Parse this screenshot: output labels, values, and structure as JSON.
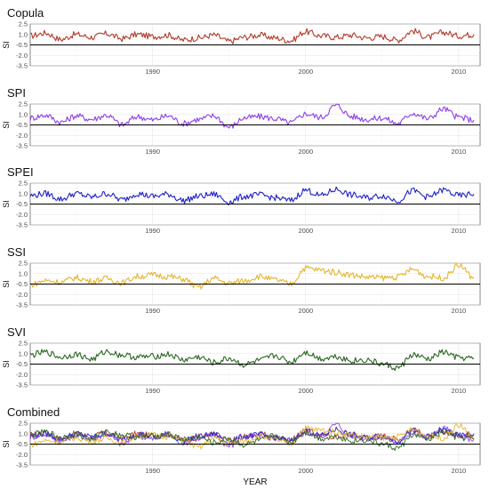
{
  "chart_data": {
    "type": "line",
    "x_label": "YEAR",
    "y_label": "SI",
    "x_range": [
      1982,
      2011.4
    ],
    "y_range": [
      -3.5,
      2.5
    ],
    "y_ticks": [
      "2.5",
      "1.0",
      "-0.5",
      "-2.0",
      "-3.5"
    ],
    "y_tick_values": [
      2.5,
      1.0,
      -0.5,
      -2.0,
      -3.5
    ],
    "x_ticks": [
      "1990",
      "2000",
      "2010"
    ],
    "x_tick_values": [
      1990,
      2000,
      2010
    ],
    "reference_line_y": -0.5,
    "grid": true,
    "panels": [
      {
        "title": "Copula",
        "color": "#b33a2a",
        "points": [
          [
            1982,
            0.8
          ],
          [
            1983,
            1.2
          ],
          [
            1984,
            0.3
          ],
          [
            1985,
            1.0
          ],
          [
            1986,
            0.6
          ],
          [
            1987,
            1.1
          ],
          [
            1988,
            0.4
          ],
          [
            1989,
            1.0
          ],
          [
            1990,
            0.7
          ],
          [
            1991,
            0.9
          ],
          [
            1992,
            0.2
          ],
          [
            1993,
            0.5
          ],
          [
            1994,
            0.9
          ],
          [
            1995,
            0.0
          ],
          [
            1996,
            0.6
          ],
          [
            1997,
            0.9
          ],
          [
            1998,
            0.5
          ],
          [
            1999,
            0.1
          ],
          [
            2000,
            1.4
          ],
          [
            2001,
            0.8
          ],
          [
            2002,
            0.6
          ],
          [
            2003,
            0.9
          ],
          [
            2004,
            0.5
          ],
          [
            2005,
            0.7
          ],
          [
            2006,
            0.2
          ],
          [
            2007,
            1.5
          ],
          [
            2008,
            0.6
          ],
          [
            2009,
            1.3
          ],
          [
            2010,
            0.8
          ],
          [
            2011,
            1.0
          ]
        ]
      },
      {
        "title": "SPI",
        "color": "#8f3fe8",
        "points": [
          [
            1982,
            0.5
          ],
          [
            1983,
            0.9
          ],
          [
            1984,
            -0.1
          ],
          [
            1985,
            0.8
          ],
          [
            1986,
            0.3
          ],
          [
            1987,
            0.9
          ],
          [
            1988,
            -0.5
          ],
          [
            1989,
            0.7
          ],
          [
            1990,
            0.2
          ],
          [
            1991,
            0.8
          ],
          [
            1992,
            -0.3
          ],
          [
            1993,
            0.3
          ],
          [
            1994,
            0.8
          ],
          [
            1995,
            -0.8
          ],
          [
            1996,
            0.5
          ],
          [
            1997,
            0.7
          ],
          [
            1998,
            0.4
          ],
          [
            1999,
            -0.2
          ],
          [
            2000,
            1.1
          ],
          [
            2001,
            0.6
          ],
          [
            2002,
            2.3
          ],
          [
            2003,
            0.7
          ],
          [
            2004,
            0.3
          ],
          [
            2005,
            0.5
          ],
          [
            2006,
            -0.3
          ],
          [
            2007,
            1.2
          ],
          [
            2008,
            0.4
          ],
          [
            2009,
            1.8
          ],
          [
            2010,
            0.6
          ],
          [
            2011,
            0.2
          ]
        ]
      },
      {
        "title": "SPEI",
        "color": "#2020c8",
        "points": [
          [
            1982,
            0.7
          ],
          [
            1983,
            1.0
          ],
          [
            1984,
            0.2
          ],
          [
            1985,
            1.0
          ],
          [
            1986,
            0.5
          ],
          [
            1987,
            1.0
          ],
          [
            1988,
            0.1
          ],
          [
            1989,
            1.0
          ],
          [
            1990,
            0.6
          ],
          [
            1991,
            0.9
          ],
          [
            1992,
            0.0
          ],
          [
            1993,
            0.6
          ],
          [
            1994,
            0.9
          ],
          [
            1995,
            -0.2
          ],
          [
            1996,
            0.6
          ],
          [
            1997,
            0.8
          ],
          [
            1998,
            0.4
          ],
          [
            1999,
            0.0
          ],
          [
            2000,
            1.5
          ],
          [
            2001,
            0.7
          ],
          [
            2002,
            1.6
          ],
          [
            2003,
            0.8
          ],
          [
            2004,
            0.4
          ],
          [
            2005,
            0.7
          ],
          [
            2006,
            0.0
          ],
          [
            2007,
            1.4
          ],
          [
            2008,
            0.5
          ],
          [
            2009,
            1.5
          ],
          [
            2010,
            0.7
          ],
          [
            2011,
            0.9
          ]
        ]
      },
      {
        "title": "SSI",
        "color": "#e6b52e",
        "points": [
          [
            1982,
            -0.6
          ],
          [
            1983,
            0.0
          ],
          [
            1984,
            -0.2
          ],
          [
            1985,
            0.4
          ],
          [
            1986,
            -0.1
          ],
          [
            1987,
            0.3
          ],
          [
            1988,
            -0.3
          ],
          [
            1989,
            0.6
          ],
          [
            1990,
            0.8
          ],
          [
            1991,
            0.6
          ],
          [
            1992,
            0.2
          ],
          [
            1993,
            -1.0
          ],
          [
            1994,
            0.3
          ],
          [
            1995,
            -0.4
          ],
          [
            1996,
            0.0
          ],
          [
            1997,
            0.6
          ],
          [
            1998,
            0.1
          ],
          [
            1999,
            -0.5
          ],
          [
            2000,
            1.8
          ],
          [
            2001,
            1.5
          ],
          [
            2002,
            1.2
          ],
          [
            2003,
            0.8
          ],
          [
            2004,
            0.5
          ],
          [
            2005,
            0.4
          ],
          [
            2006,
            0.5
          ],
          [
            2007,
            1.6
          ],
          [
            2008,
            0.6
          ],
          [
            2009,
            0.4
          ],
          [
            2010,
            2.2
          ],
          [
            2011,
            0.4
          ]
        ]
      },
      {
        "title": "SVI",
        "color": "#2b6622",
        "points": [
          [
            1982,
            0.8
          ],
          [
            1983,
            1.2
          ],
          [
            1984,
            0.5
          ],
          [
            1985,
            0.9
          ],
          [
            1986,
            0.2
          ],
          [
            1987,
            1.3
          ],
          [
            1988,
            0.8
          ],
          [
            1989,
            0.5
          ],
          [
            1990,
            0.6
          ],
          [
            1991,
            0.9
          ],
          [
            1992,
            0.1
          ],
          [
            1993,
            0.5
          ],
          [
            1994,
            -0.3
          ],
          [
            1995,
            0.3
          ],
          [
            1996,
            -0.6
          ],
          [
            1997,
            0.0
          ],
          [
            1998,
            0.7
          ],
          [
            1999,
            -0.2
          ],
          [
            2000,
            1.2
          ],
          [
            2001,
            0.3
          ],
          [
            2002,
            0.6
          ],
          [
            2003,
            0.0
          ],
          [
            2004,
            0.1
          ],
          [
            2005,
            -0.5
          ],
          [
            2006,
            -1.1
          ],
          [
            2007,
            0.8
          ],
          [
            2008,
            0.2
          ],
          [
            2009,
            1.2
          ],
          [
            2010,
            0.4
          ],
          [
            2011,
            0.3
          ]
        ]
      }
    ],
    "combined": {
      "title": "Combined",
      "series_colors": [
        "#b33a2a",
        "#8f3fe8",
        "#2020c8",
        "#e6b52e",
        "#2b6622"
      ]
    }
  }
}
